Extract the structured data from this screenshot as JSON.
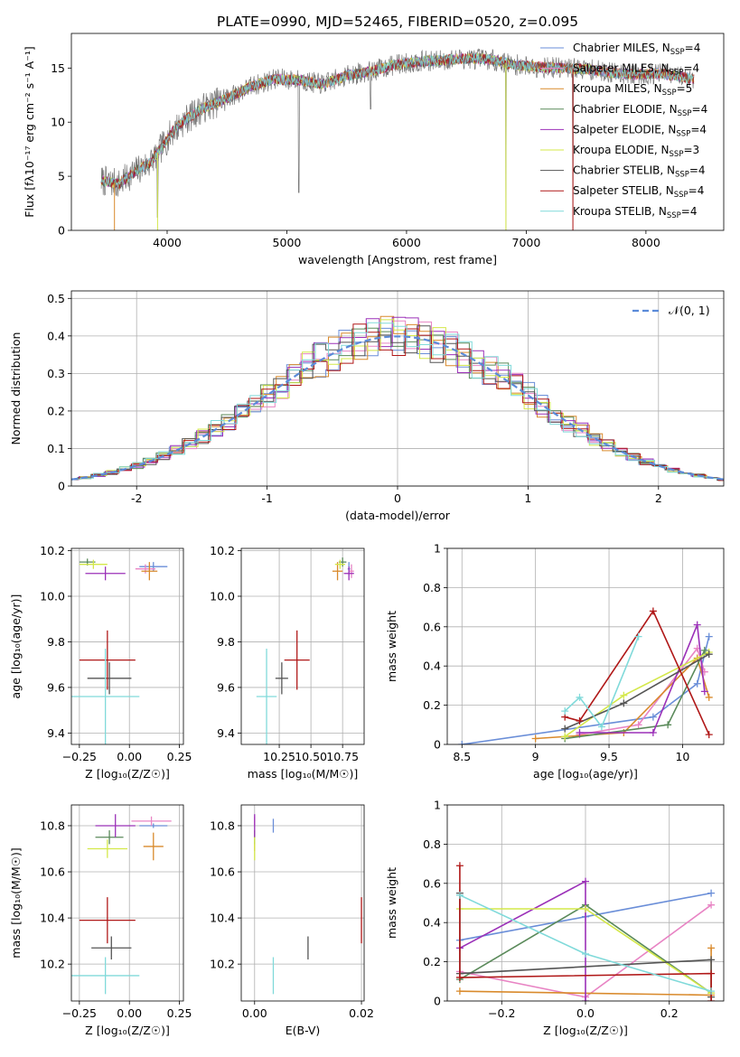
{
  "figure_title": "PLATE=0990, MJD=52465, FIBERID=0520, z=0.095",
  "legend_spectrum": [
    {
      "name": "Chabrier MILES, N$_{SSP}$=4",
      "label_main": "Chabrier MILES, N",
      "label_sub": "SSP",
      "label_tail": "=4",
      "color": "#6a8ed8"
    },
    {
      "name": "Salpeter MILES, N$_{SSP}$=4",
      "label_main": "Salpeter MILES, N",
      "label_sub": "SSP",
      "label_tail": "=4",
      "color": "#e884c4"
    },
    {
      "name": "Kroupa MILES, N$_{SSP}$=5",
      "label_main": "Kroupa MILES, N",
      "label_sub": "SSP",
      "label_tail": "=5",
      "color": "#d98a2c"
    },
    {
      "name": "Chabrier ELODIE, N$_{SSP}$=4",
      "label_main": "Chabrier ELODIE, N",
      "label_sub": "SSP",
      "label_tail": "=4",
      "color": "#5a8a5a"
    },
    {
      "name": "Salpeter ELODIE, N$_{SSP}$=4",
      "label_main": "Salpeter ELODIE, N",
      "label_sub": "SSP",
      "label_tail": "=4",
      "color": "#9b30b8"
    },
    {
      "name": "Kroupa ELODIE, N$_{SSP}$=3",
      "label_main": "Kroupa ELODIE, N",
      "label_sub": "SSP",
      "label_tail": "=3",
      "color": "#d4e84a"
    },
    {
      "name": "Chabrier STELIB, N$_{SSP}$=4",
      "label_main": "Chabrier STELIB, N",
      "label_sub": "SSP",
      "label_tail": "=4",
      "color": "#555555"
    },
    {
      "name": "Salpeter STELIB, N$_{SSP}$=4",
      "label_main": "Salpeter STELIB, N",
      "label_sub": "SSP",
      "label_tail": "=4",
      "color": "#b01818"
    },
    {
      "name": "Kroupa STELIB, N$_{SSP}$=4",
      "label_main": "Kroupa STELIB, N",
      "label_sub": "SSP",
      "label_tail": "=4",
      "color": "#80dada"
    }
  ],
  "chart_data": [
    {
      "id": "spectrum",
      "type": "line",
      "xlabel": "wavelength [Angstrom, rest frame]",
      "ylabel": "Flux [f$_\\lambda$10$^{-17}$ erg cm$^{-2}$ s$^{-1}$ A$^{-1}$]",
      "ylabel_display": "Flux [fλ10⁻¹⁷ erg cm⁻² s⁻¹ A⁻¹]",
      "xlim": [
        3200,
        8650
      ],
      "ylim": [
        0,
        18.2
      ],
      "xticks": [
        4000,
        5000,
        6000,
        7000,
        8000
      ],
      "yticks": [
        0,
        5,
        10,
        15
      ],
      "legend_loc": "upper-right",
      "continuum": [
        [
          3450,
          4.6
        ],
        [
          3600,
          4.3
        ],
        [
          3700,
          5.2
        ],
        [
          3850,
          6.2
        ],
        [
          3950,
          7.6
        ],
        [
          4050,
          9.2
        ],
        [
          4150,
          10.2
        ],
        [
          4300,
          11.3
        ],
        [
          4500,
          12.2
        ],
        [
          4700,
          13.3
        ],
        [
          4900,
          14.0
        ],
        [
          5100,
          13.9
        ],
        [
          5300,
          13.5
        ],
        [
          5500,
          14.3
        ],
        [
          5700,
          14.7
        ],
        [
          5900,
          15.3
        ],
        [
          6100,
          15.6
        ],
        [
          6300,
          15.7
        ],
        [
          6500,
          15.9
        ],
        [
          6700,
          15.8
        ],
        [
          6900,
          15.3
        ],
        [
          7100,
          15.1
        ],
        [
          7300,
          15.0
        ],
        [
          7500,
          14.9
        ],
        [
          7700,
          14.6
        ],
        [
          7900,
          14.4
        ],
        [
          8100,
          14.5
        ],
        [
          8300,
          14.2
        ],
        [
          8400,
          14.0
        ]
      ],
      "features": [
        {
          "x": 3920,
          "y": 1.2
        },
        {
          "x": 5100,
          "y": 3.5
        },
        {
          "x": 5700,
          "y": 11.2
        },
        {
          "x": 6830,
          "y": 0
        },
        {
          "x": 7390,
          "y": 0
        }
      ]
    },
    {
      "id": "residuals",
      "type": "histogram",
      "xlabel": "(data-model)/error",
      "ylabel": "Normed distribution",
      "xlim": [
        -2.5,
        2.5
      ],
      "ylim": [
        0,
        0.52
      ],
      "xticks": [
        -2,
        -1,
        0,
        1,
        2
      ],
      "yticks": [
        0.0,
        0.1,
        0.2,
        0.3,
        0.4,
        0.5
      ],
      "grid": true,
      "legend_loc": "upper-right",
      "reference_label": "$\\mathcal{N}(0,1)$",
      "reference_label_display": "𝒩(0, 1)",
      "reference_color": "#5b8bd9",
      "bin_width": 0.1
    },
    {
      "id": "age_vs_Z",
      "type": "errorbar",
      "xlabel": "Z [log$_{10}$($Z/Z_\\odot$)]",
      "xlabel_display": "Z [log₁₀(Z/Z☉)]",
      "ylabel": "age  [log$_{10}$($age/yr$)]",
      "ylabel_display": "age  [log₁₀(age/yr)]",
      "xlim": [
        -0.29,
        0.27
      ],
      "ylim": [
        9.35,
        10.21
      ],
      "xticks": [
        -0.25,
        0.0,
        0.25
      ],
      "xticklabels": [
        "−0.25",
        "0.00",
        "0.25"
      ],
      "yticks": [
        9.4,
        9.6,
        9.8,
        10.0,
        10.2
      ],
      "grid": true,
      "points": [
        {
          "series": "Chabrier MILES",
          "x": 0.12,
          "y": 10.13,
          "xerr": 0.07,
          "yerr": 0.02
        },
        {
          "series": "Salpeter MILES",
          "x": 0.08,
          "y": 10.12,
          "xerr": 0.05,
          "yerr": 0.02
        },
        {
          "series": "Kroupa MILES",
          "x": 0.1,
          "y": 10.11,
          "xerr": 0.04,
          "yerr": 0.04
        },
        {
          "series": "Chabrier ELODIE",
          "x": -0.21,
          "y": 10.15,
          "xerr": 0.04,
          "yerr": 0.015
        },
        {
          "series": "Salpeter ELODIE",
          "x": -0.12,
          "y": 10.1,
          "xerr": 0.1,
          "yerr": 0.03
        },
        {
          "series": "Kroupa ELODIE",
          "x": -0.18,
          "y": 10.14,
          "xerr": 0.07,
          "yerr": 0.02
        },
        {
          "series": "Chabrier STELIB",
          "x": -0.1,
          "y": 9.64,
          "xerr": 0.11,
          "yerr": 0.07
        },
        {
          "series": "Salpeter STELIB",
          "x": -0.11,
          "y": 9.72,
          "xerr": 0.14,
          "yerr": 0.13
        },
        {
          "series": "Kroupa STELIB",
          "x": -0.12,
          "y": 9.56,
          "xerr": 0.17,
          "yerr": 0.21
        }
      ]
    },
    {
      "id": "age_vs_mass",
      "type": "errorbar",
      "xlabel": "mass [log$_{10}$($M/M_\\odot$)]",
      "xlabel_display": "mass [log₁₀(M/M☉)]",
      "xlim": [
        9.95,
        10.92
      ],
      "ylim": [
        9.35,
        10.21
      ],
      "xticks": [
        10.25,
        10.5,
        10.75
      ],
      "xticklabels": [
        "10.25",
        "10.50",
        "10.75"
      ],
      "yticks": [
        9.4,
        9.6,
        9.8,
        10.0,
        10.2
      ],
      "grid": true,
      "points": [
        {
          "series": "Chabrier MILES",
          "x": 10.8,
          "y": 10.12,
          "xerr": 0.01,
          "yerr": 0.03
        },
        {
          "series": "Salpeter MILES",
          "x": 10.82,
          "y": 10.11,
          "xerr": 0.02,
          "yerr": 0.03
        },
        {
          "series": "Kroupa MILES",
          "x": 10.71,
          "y": 10.11,
          "xerr": 0.04,
          "yerr": 0.04
        },
        {
          "series": "Chabrier ELODIE",
          "x": 10.75,
          "y": 10.15,
          "xerr": 0.03,
          "yerr": 0.02
        },
        {
          "series": "Salpeter ELODIE",
          "x": 10.8,
          "y": 10.1,
          "xerr": 0.04,
          "yerr": 0.03
        },
        {
          "series": "Kroupa ELODIE",
          "x": 10.73,
          "y": 10.14,
          "xerr": 0.04,
          "yerr": 0.02
        },
        {
          "series": "Chabrier STELIB",
          "x": 10.27,
          "y": 9.64,
          "xerr": 0.05,
          "yerr": 0.07
        },
        {
          "series": "Salpeter STELIB",
          "x": 10.39,
          "y": 9.72,
          "xerr": 0.1,
          "yerr": 0.13
        },
        {
          "series": "Kroupa STELIB",
          "x": 10.15,
          "y": 9.56,
          "xerr": 0.08,
          "yerr": 0.21
        }
      ]
    },
    {
      "id": "weight_vs_age",
      "type": "line",
      "xlabel": "age  [log$_{10}$($age/yr$)]",
      "xlabel_display": "age  [log₁₀(age/yr)]",
      "ylabel": "mass weight",
      "xlim": [
        8.4,
        10.28
      ],
      "ylim": [
        0,
        1.0
      ],
      "xticks": [
        8.5,
        9.0,
        9.5,
        10.0
      ],
      "yticks": [
        0.0,
        0.2,
        0.4,
        0.6,
        0.8,
        1.0
      ],
      "grid": true,
      "series": [
        {
          "name": "Chabrier MILES",
          "x": [
            8.5,
            9.8,
            10.1,
            10.18
          ],
          "y": [
            0.0,
            0.14,
            0.31,
            0.55
          ]
        },
        {
          "name": "Salpeter MILES",
          "x": [
            9.3,
            9.7,
            10.1,
            10.15
          ],
          "y": [
            0.05,
            0.1,
            0.49,
            0.37
          ]
        },
        {
          "name": "Kroupa MILES",
          "x": [
            9.0,
            9.6,
            10.1,
            10.18
          ],
          "y": [
            0.03,
            0.06,
            0.44,
            0.24
          ]
        },
        {
          "name": "Chabrier ELODIE",
          "x": [
            9.2,
            9.9,
            10.15
          ],
          "y": [
            0.03,
            0.1,
            0.48
          ]
        },
        {
          "name": "Salpeter ELODIE",
          "x": [
            9.3,
            9.8,
            10.1,
            10.15
          ],
          "y": [
            0.06,
            0.06,
            0.61,
            0.27
          ]
        },
        {
          "name": "Kroupa ELODIE",
          "x": [
            9.2,
            9.6,
            10.18
          ],
          "y": [
            0.04,
            0.25,
            0.47
          ]
        },
        {
          "name": "Chabrier STELIB",
          "x": [
            9.2,
            9.6,
            10.18
          ],
          "y": [
            0.08,
            0.21,
            0.46
          ]
        },
        {
          "name": "Salpeter STELIB",
          "x": [
            9.2,
            9.3,
            9.8,
            10.18
          ],
          "y": [
            0.14,
            0.12,
            0.68,
            0.05
          ]
        },
        {
          "name": "Kroupa STELIB",
          "x": [
            9.2,
            9.3,
            9.45,
            9.7
          ],
          "y": [
            0.17,
            0.24,
            0.09,
            0.55
          ]
        }
      ]
    },
    {
      "id": "mass_vs_Z",
      "type": "errorbar",
      "xlabel": "Z [log$_{10}$($Z/Z_\\odot$)]",
      "xlabel_display": "Z [log₁₀(Z/Z☉)]",
      "ylabel": "mass [log$_{10}$($M/M_\\odot$)]",
      "ylabel_display": "mass [log₁₀(M/M☉)]",
      "xlim": [
        -0.29,
        0.27
      ],
      "ylim": [
        10.04,
        10.89
      ],
      "xticks": [
        -0.25,
        0.0,
        0.25
      ],
      "xticklabels": [
        "−0.25",
        "0.00",
        "0.25"
      ],
      "yticks": [
        10.2,
        10.4,
        10.6,
        10.8
      ],
      "grid": true,
      "points": [
        {
          "series": "Chabrier MILES",
          "x": 0.12,
          "y": 10.8,
          "xerr": 0.07,
          "yerr": 0.01
        },
        {
          "series": "Salpeter MILES",
          "x": 0.11,
          "y": 10.82,
          "xerr": 0.1,
          "yerr": 0.02
        },
        {
          "series": "Kroupa MILES",
          "x": 0.12,
          "y": 10.71,
          "xerr": 0.05,
          "yerr": 0.06
        },
        {
          "series": "Chabrier ELODIE",
          "x": -0.1,
          "y": 10.75,
          "xerr": 0.07,
          "yerr": 0.03
        },
        {
          "series": "Salpeter ELODIE",
          "x": -0.07,
          "y": 10.8,
          "xerr": 0.1,
          "yerr": 0.05
        },
        {
          "series": "Kroupa ELODIE",
          "x": -0.11,
          "y": 10.7,
          "xerr": 0.1,
          "yerr": 0.04
        },
        {
          "series": "Chabrier STELIB",
          "x": -0.09,
          "y": 10.27,
          "xerr": 0.1,
          "yerr": 0.05
        },
        {
          "series": "Salpeter STELIB",
          "x": -0.11,
          "y": 10.39,
          "xerr": 0.14,
          "yerr": 0.1
        },
        {
          "series": "Kroupa STELIB",
          "x": -0.12,
          "y": 10.15,
          "xerr": 0.17,
          "yerr": 0.08
        }
      ]
    },
    {
      "id": "mass_vs_EBV",
      "type": "errorbar",
      "xlabel": "E(B-V)",
      "xlim": [
        -0.0025,
        0.0205
      ],
      "ylim": [
        10.04,
        10.89
      ],
      "xticks": [
        0.0,
        0.02
      ],
      "xticklabels": [
        "0.00",
        "0.02"
      ],
      "yticks": [
        10.2,
        10.4,
        10.6,
        10.8
      ],
      "grid": true,
      "points": [
        {
          "series": "Chabrier MILES",
          "x": 0.0035,
          "y": 10.8,
          "xerr": 0,
          "yerr": 0.03
        },
        {
          "series": "Salpeter MILES",
          "x": 0.0,
          "y": 10.82,
          "xerr": 0,
          "yerr": 0.02
        },
        {
          "series": "Kroupa MILES",
          "x": 0.0,
          "y": 10.71,
          "xerr": 0,
          "yerr": 0.02
        },
        {
          "series": "Chabrier ELODIE",
          "x": 0.0,
          "y": 10.75,
          "xerr": 0,
          "yerr": 0.03
        },
        {
          "series": "Salpeter ELODIE",
          "x": 0.0,
          "y": 10.8,
          "xerr": 0,
          "yerr": 0.05
        },
        {
          "series": "Kroupa ELODIE",
          "x": 0.0,
          "y": 10.7,
          "xerr": 0,
          "yerr": 0.05
        },
        {
          "series": "Chabrier STELIB",
          "x": 0.01,
          "y": 10.27,
          "xerr": 0,
          "yerr": 0.05
        },
        {
          "series": "Salpeter STELIB",
          "x": 0.02,
          "y": 10.39,
          "xerr": 0,
          "yerr": 0.1
        },
        {
          "series": "Kroupa STELIB",
          "x": 0.0035,
          "y": 10.15,
          "xerr": 0,
          "yerr": 0.08
        }
      ]
    },
    {
      "id": "weight_vs_Z",
      "type": "line",
      "xlabel": "Z [log$_{10}$($Z/Z_\\odot$)]",
      "xlabel_display": "Z [log₁₀(Z/Z☉)]",
      "ylabel": "mass weight",
      "xlim": [
        -0.33,
        0.33
      ],
      "ylim": [
        0,
        1.0
      ],
      "xticks": [
        -0.2,
        0.0,
        0.2
      ],
      "xticklabels": [
        "−0.2",
        "0.0",
        "0.2"
      ],
      "yticks": [
        0.0,
        0.2,
        0.4,
        0.6,
        0.8,
        1.0
      ],
      "grid": true,
      "series": [
        {
          "name": "Chabrier MILES",
          "x": [
            -0.3,
            0.0,
            0.3
          ],
          "y": [
            0.31,
            0.43,
            0.55
          ]
        },
        {
          "name": "Salpeter MILES",
          "x": [
            -0.3,
            0.0,
            0.3
          ],
          "y": [
            0.15,
            0.02,
            0.49
          ]
        },
        {
          "name": "Kroupa MILES",
          "x": [
            -0.3,
            0.3,
            0.3
          ],
          "y": [
            0.05,
            0.03,
            0.27
          ]
        },
        {
          "name": "Chabrier ELODIE",
          "x": [
            -0.3,
            0.0,
            0.3
          ],
          "y": [
            0.11,
            0.49,
            0.04
          ]
        },
        {
          "name": "Salpeter ELODIE",
          "x": [
            -0.3,
            0.0,
            0.0
          ],
          "y": [
            0.27,
            0.61,
            0.0
          ]
        },
        {
          "name": "Kroupa ELODIE",
          "x": [
            -0.3,
            0.0,
            0.3
          ],
          "y": [
            0.47,
            0.47,
            0.04
          ]
        },
        {
          "name": "Chabrier STELIB",
          "x": [
            -0.3,
            -0.3,
            0.3,
            0.3
          ],
          "y": [
            0.55,
            0.14,
            0.21,
            0.02
          ]
        },
        {
          "name": "Salpeter STELIB",
          "x": [
            -0.3,
            -0.3,
            0.3,
            0.3
          ],
          "y": [
            0.69,
            0.12,
            0.14,
            0.0
          ]
        },
        {
          "name": "Kroupa STELIB",
          "x": [
            -0.3,
            0.0,
            0.3
          ],
          "y": [
            0.54,
            0.24,
            0.05
          ]
        }
      ]
    }
  ]
}
